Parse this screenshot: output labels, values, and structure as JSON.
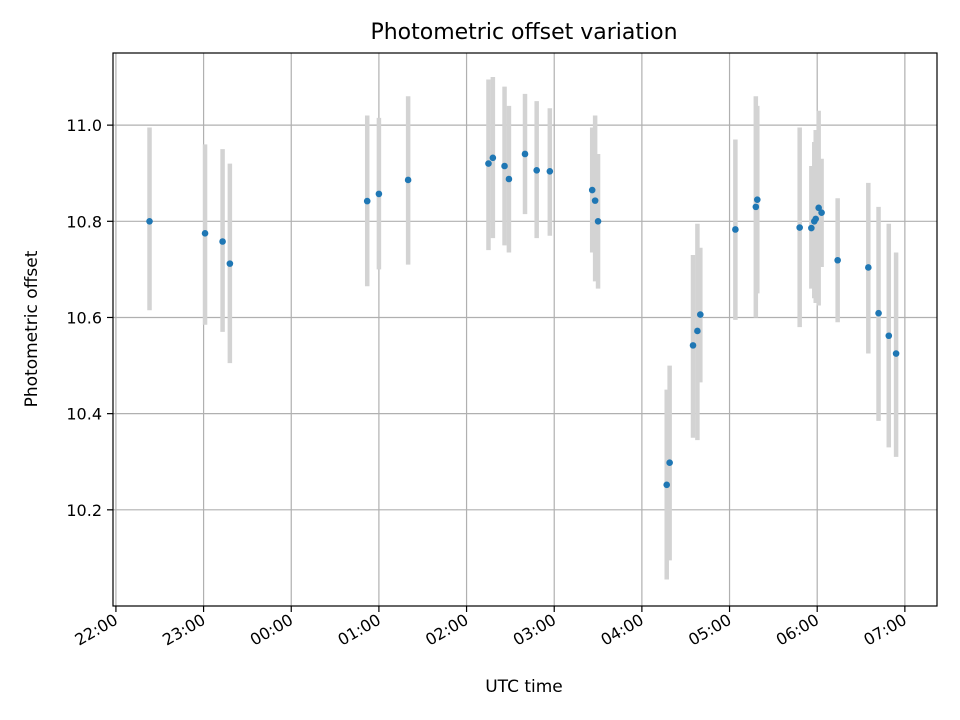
{
  "chart_data": {
    "type": "scatter",
    "title": "Photometric offset variation",
    "xlabel": "UTC time",
    "ylabel": "Photometric offset",
    "x_axis_kind": "time",
    "xlim": [
      "21:58",
      "07:22"
    ],
    "ylim": [
      10.0,
      11.15
    ],
    "grid": true,
    "legend": "none",
    "x_ticks": [
      "22:00",
      "23:00",
      "00:00",
      "01:00",
      "02:00",
      "03:00",
      "04:00",
      "05:00",
      "06:00",
      "07:00"
    ],
    "y_ticks": [
      "10.2",
      "10.4",
      "10.6",
      "10.8",
      "11.0"
    ],
    "y_tick_values": [
      10.2,
      10.4,
      10.6,
      10.8,
      11.0
    ],
    "colors": {
      "point": "#1f77b4",
      "errorbar": "#d3d3d3",
      "grid": "#b0b0b0"
    },
    "points": [
      {
        "x": "22:23",
        "y": 10.8,
        "ylow": 10.615,
        "yhigh": 10.995
      },
      {
        "x": "23:01",
        "y": 10.775,
        "ylow": 10.585,
        "yhigh": 10.96
      },
      {
        "x": "23:13",
        "y": 10.758,
        "ylow": 10.57,
        "yhigh": 10.95
      },
      {
        "x": "23:18",
        "y": 10.712,
        "ylow": 10.505,
        "yhigh": 10.92
      },
      {
        "x": "00:52",
        "y": 10.842,
        "ylow": 10.665,
        "yhigh": 11.02
      },
      {
        "x": "01:00",
        "y": 10.857,
        "ylow": 10.7,
        "yhigh": 11.015
      },
      {
        "x": "01:20",
        "y": 10.886,
        "ylow": 10.71,
        "yhigh": 11.06
      },
      {
        "x": "02:15",
        "y": 10.92,
        "ylow": 10.74,
        "yhigh": 11.095
      },
      {
        "x": "02:18",
        "y": 10.932,
        "ylow": 10.765,
        "yhigh": 11.1
      },
      {
        "x": "02:26",
        "y": 10.915,
        "ylow": 10.75,
        "yhigh": 11.08
      },
      {
        "x": "02:29",
        "y": 10.888,
        "ylow": 10.735,
        "yhigh": 11.04
      },
      {
        "x": "02:40",
        "y": 10.94,
        "ylow": 10.815,
        "yhigh": 11.065
      },
      {
        "x": "02:48",
        "y": 10.906,
        "ylow": 10.765,
        "yhigh": 11.05
      },
      {
        "x": "02:57",
        "y": 10.904,
        "ylow": 10.77,
        "yhigh": 11.035
      },
      {
        "x": "03:26",
        "y": 10.865,
        "ylow": 10.735,
        "yhigh": 10.995
      },
      {
        "x": "03:28",
        "y": 10.843,
        "ylow": 10.675,
        "yhigh": 11.02
      },
      {
        "x": "03:30",
        "y": 10.8,
        "ylow": 10.66,
        "yhigh": 10.94
      },
      {
        "x": "04:17",
        "y": 10.252,
        "ylow": 10.055,
        "yhigh": 10.45
      },
      {
        "x": "04:19",
        "y": 10.298,
        "ylow": 10.095,
        "yhigh": 10.5
      },
      {
        "x": "04:35",
        "y": 10.542,
        "ylow": 10.35,
        "yhigh": 10.73
      },
      {
        "x": "04:38",
        "y": 10.572,
        "ylow": 10.345,
        "yhigh": 10.795
      },
      {
        "x": "04:40",
        "y": 10.606,
        "ylow": 10.465,
        "yhigh": 10.745
      },
      {
        "x": "05:04",
        "y": 10.783,
        "ylow": 10.595,
        "yhigh": 10.97
      },
      {
        "x": "05:18",
        "y": 10.83,
        "ylow": 10.6,
        "yhigh": 11.06
      },
      {
        "x": "05:19",
        "y": 10.845,
        "ylow": 10.65,
        "yhigh": 11.04
      },
      {
        "x": "05:48",
        "y": 10.787,
        "ylow": 10.58,
        "yhigh": 10.995
      },
      {
        "x": "05:56",
        "y": 10.786,
        "ylow": 10.66,
        "yhigh": 10.915
      },
      {
        "x": "05:58",
        "y": 10.8,
        "ylow": 10.64,
        "yhigh": 10.965
      },
      {
        "x": "05:59",
        "y": 10.805,
        "ylow": 10.63,
        "yhigh": 10.99
      },
      {
        "x": "06:01",
        "y": 10.828,
        "ylow": 10.625,
        "yhigh": 11.03
      },
      {
        "x": "06:03",
        "y": 10.818,
        "ylow": 10.705,
        "yhigh": 10.93
      },
      {
        "x": "06:14",
        "y": 10.719,
        "ylow": 10.59,
        "yhigh": 10.848
      },
      {
        "x": "06:35",
        "y": 10.704,
        "ylow": 10.525,
        "yhigh": 10.88
      },
      {
        "x": "06:42",
        "y": 10.609,
        "ylow": 10.385,
        "yhigh": 10.83
      },
      {
        "x": "06:49",
        "y": 10.562,
        "ylow": 10.33,
        "yhigh": 10.795
      },
      {
        "x": "06:54",
        "y": 10.525,
        "ylow": 10.31,
        "yhigh": 10.735
      }
    ]
  }
}
